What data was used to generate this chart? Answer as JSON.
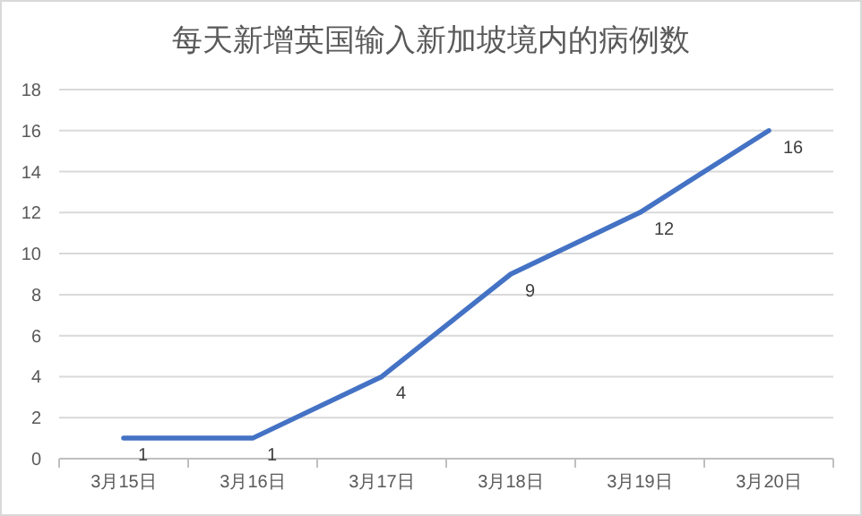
{
  "chart_data": {
    "type": "line",
    "title": "每天新增英国输入新加坡境内的病例数",
    "categories": [
      "3月15日",
      "3月16日",
      "3月17日",
      "3月18日",
      "3月19日",
      "3月20日"
    ],
    "series": [
      {
        "color": "#4472c4",
        "values": [
          1,
          1,
          4,
          9,
          12,
          16
        ]
      }
    ],
    "ylim": [
      0,
      18
    ],
    "yticks": [
      0,
      2,
      4,
      6,
      8,
      10,
      12,
      14,
      16,
      18
    ],
    "grid": "y",
    "data_labels": true,
    "marker": "none",
    "line_style": "solid"
  }
}
